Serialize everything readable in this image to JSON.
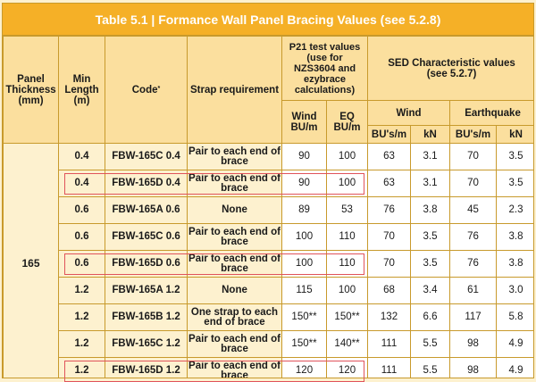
{
  "title": "Table 5.1 | Formance Wall Panel Bracing Values (see 5.2.8)",
  "headers": {
    "panel_thickness": "Panel Thickness (mm)",
    "min_length": "Min Length (m)",
    "code": "Code",
    "code_mark": "*",
    "strap_requirement": "Strap requirement",
    "p21_group": "P21 test values (use for NZS3604 and ezybrace calculations)",
    "sed_group": "SED Characteristic values (see 5.2.7)",
    "p21_wind": "Wind BU/m",
    "p21_eq": "EQ BU/m",
    "sed_wind": "Wind",
    "sed_earthquake": "Earthquake",
    "sed_wind_bu": "BU's/m",
    "sed_wind_kn": "kN",
    "sed_eq_bu": "BU's/m",
    "sed_eq_kn": "kN"
  },
  "panel_thickness_value": "165",
  "rows": [
    {
      "length": "0.4",
      "code": "FBW-165C 0.4",
      "strap": "Pair to each end of brace",
      "p21_wind": "90",
      "p21_eq": "100",
      "sed_wind_bu": "63",
      "sed_wind_kn": "3.1",
      "sed_eq_bu": "70",
      "sed_eq_kn": "3.5",
      "highlighted": false
    },
    {
      "length": "0.4",
      "code": "FBW-165D 0.4",
      "strap": "Pair to each end of brace",
      "p21_wind": "90",
      "p21_eq": "100",
      "sed_wind_bu": "63",
      "sed_wind_kn": "3.1",
      "sed_eq_bu": "70",
      "sed_eq_kn": "3.5",
      "highlighted": true
    },
    {
      "length": "0.6",
      "code": "FBW-165A 0.6",
      "strap": "None",
      "p21_wind": "89",
      "p21_eq": "53",
      "sed_wind_bu": "76",
      "sed_wind_kn": "3.8",
      "sed_eq_bu": "45",
      "sed_eq_kn": "2.3",
      "highlighted": false
    },
    {
      "length": "0.6",
      "code": "FBW-165C 0.6",
      "strap": "Pair to each end of brace",
      "p21_wind": "100",
      "p21_eq": "110",
      "sed_wind_bu": "70",
      "sed_wind_kn": "3.5",
      "sed_eq_bu": "76",
      "sed_eq_kn": "3.8",
      "highlighted": false
    },
    {
      "length": "0.6",
      "code": "FBW-165D 0.6",
      "strap": "Pair to each end of brace",
      "p21_wind": "100",
      "p21_eq": "110",
      "sed_wind_bu": "70",
      "sed_wind_kn": "3.5",
      "sed_eq_bu": "76",
      "sed_eq_kn": "3.8",
      "highlighted": true
    },
    {
      "length": "1.2",
      "code": "FBW-165A 1.2",
      "strap": "None",
      "p21_wind": "115",
      "p21_eq": "100",
      "sed_wind_bu": "68",
      "sed_wind_kn": "3.4",
      "sed_eq_bu": "61",
      "sed_eq_kn": "3.0",
      "highlighted": false
    },
    {
      "length": "1.2",
      "code": "FBW-165B 1.2",
      "strap": "One strap to each end of brace",
      "p21_wind": "150**",
      "p21_eq": "150**",
      "sed_wind_bu": "132",
      "sed_wind_kn": "6.6",
      "sed_eq_bu": "117",
      "sed_eq_kn": "5.8",
      "highlighted": false
    },
    {
      "length": "1.2",
      "code": "FBW-165C 1.2",
      "strap": "Pair to each end of brace",
      "p21_wind": "150**",
      "p21_eq": "140**",
      "sed_wind_bu": "111",
      "sed_wind_kn": "5.5",
      "sed_eq_bu": "98",
      "sed_eq_kn": "4.9",
      "highlighted": false
    },
    {
      "length": "1.2",
      "code": "FBW-165D 1.2",
      "strap": "Pair to each end of brace",
      "p21_wind": "120",
      "p21_eq": "120",
      "sed_wind_bu": "111",
      "sed_wind_kn": "5.5",
      "sed_eq_bu": "98",
      "sed_eq_kn": "4.9",
      "highlighted": true
    }
  ],
  "colors": {
    "title_bg": "#f5b027",
    "header_bg": "#fbdf9e",
    "body_bg": "#fdf1cf",
    "cell_white": "#ffffff",
    "grid": "#c89a2c",
    "highlight": "#e0535b"
  }
}
